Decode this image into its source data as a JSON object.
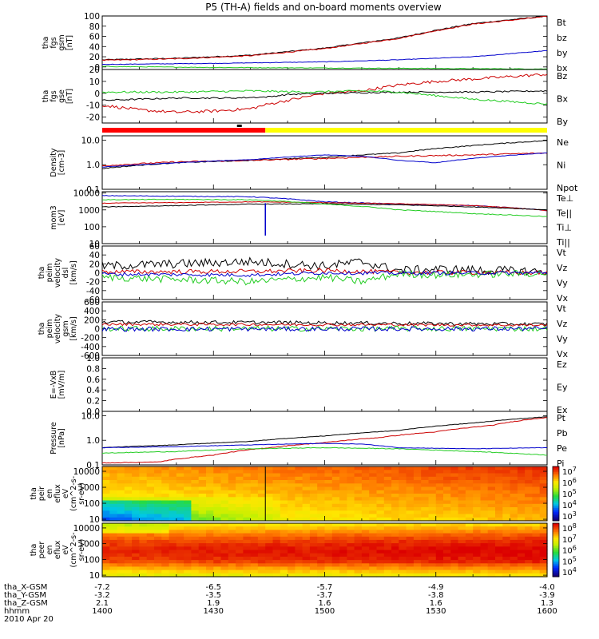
{
  "title": "P5 (TH-A) fields and on-board moments overview",
  "date": "2010 Apr 20",
  "time_axis": {
    "label": "hhmm",
    "ticks": [
      "1400",
      "1430",
      "1500",
      "1530",
      "1600"
    ],
    "range_minutes": [
      0,
      120
    ]
  },
  "ephemeris": [
    {
      "label": "tha_X-GSM",
      "values": [
        "-7.2",
        "-6.5",
        "-5.7",
        "-4.9",
        "-4.0"
      ]
    },
    {
      "label": "tha_Y-GSM",
      "values": [
        "-3.2",
        "-3.5",
        "-3.7",
        "-3.8",
        "-3.9"
      ]
    },
    {
      "label": "tha_Z-GSM",
      "values": [
        "2.1",
        "1.9",
        "1.6",
        "1.6",
        "1.3"
      ]
    }
  ],
  "colors": {
    "black": "#000000",
    "red": "#cc0000",
    "green": "#22cc22",
    "blue": "#0000cc",
    "yellow": "#ffff00"
  },
  "mode_bar": {
    "segments": [
      {
        "from": 0,
        "to": 44,
        "color": "#ff0000"
      },
      {
        "from": 44,
        "to": 120,
        "color": "#ffff00"
      }
    ],
    "marker_at": 37
  },
  "panels": [
    {
      "id": "fgs-gsm",
      "ylabel": [
        "tha",
        "fgs",
        "gsm",
        "[nT]"
      ],
      "scale": "linear",
      "ylim": [
        -5,
        100
      ],
      "ticks": [
        "100",
        "80",
        "60",
        "40",
        "20",
        "0"
      ],
      "tick_values": [
        100,
        80,
        60,
        40,
        20,
        0
      ],
      "legend": [
        {
          "t": "Bt",
          "c": "#000000"
        },
        {
          "t": "bz",
          "c": "#cc0000"
        },
        {
          "t": "by",
          "c": "#22cc22"
        },
        {
          "t": "bx",
          "c": "#0000cc"
        }
      ]
    },
    {
      "id": "fgs-gse",
      "ylabel": [
        "tha",
        "fgs",
        "gse",
        "[nT]"
      ],
      "scale": "linear",
      "ylim": [
        -25,
        20
      ],
      "ticks": [
        "20",
        "10",
        "0",
        "-10",
        "-20"
      ],
      "tick_values": [
        20,
        10,
        0,
        -10,
        -20
      ],
      "legend": [
        {
          "t": "Bz",
          "c": "#cc0000"
        },
        {
          "t": "Bx",
          "c": "#000000"
        },
        {
          "t": "By",
          "c": "#22cc22"
        }
      ]
    },
    {
      "id": "density",
      "ylabel": [
        "Density",
        "[cm-3]"
      ],
      "scale": "log",
      "ylim": [
        0.1,
        15
      ],
      "ticks": [
        "10.0",
        "1.0",
        "0.1"
      ],
      "tick_values": [
        10,
        1,
        0.1
      ],
      "legend": [
        {
          "t": "Ne",
          "c": "#cc0000"
        },
        {
          "t": "Ni",
          "c": "#000000"
        },
        {
          "t": "Npot",
          "c": "#0000cc"
        }
      ]
    },
    {
      "id": "temperature",
      "ylabel": [
        "mom3",
        "[eV]"
      ],
      "scale": "log",
      "ylim": [
        10,
        12000
      ],
      "ticks": [
        "10000",
        "1000",
        "100",
        "10"
      ],
      "tick_values": [
        10000,
        1000,
        100,
        10
      ],
      "legend": [
        {
          "t": "Te⊥",
          "c": "#cc0000"
        },
        {
          "t": "Te||",
          "c": "#000000"
        },
        {
          "t": "Ti⊥",
          "c": "#0000cc"
        },
        {
          "t": "Ti||",
          "c": "#22cc22"
        }
      ]
    },
    {
      "id": "peim-vel-dsl",
      "ylabel": [
        "tha",
        "peim",
        "velocity",
        "dsl",
        "[km/s]"
      ],
      "scale": "linear",
      "ylim": [
        -60,
        60
      ],
      "ticks": [
        "60",
        "40",
        "20",
        "0",
        "-20",
        "-40",
        "-60"
      ],
      "tick_values": [
        60,
        40,
        20,
        0,
        -20,
        -40,
        -60
      ],
      "legend": [
        {
          "t": "Vt",
          "c": "#000000"
        },
        {
          "t": "Vz",
          "c": "#cc0000"
        },
        {
          "t": "Vy",
          "c": "#22cc22"
        },
        {
          "t": "Vx",
          "c": "#0000cc"
        }
      ]
    },
    {
      "id": "peim-vel-gsm",
      "ylabel": [
        "tha",
        "peim",
        "velocity",
        "gsm",
        "[km/s]"
      ],
      "scale": "linear",
      "ylim": [
        -600,
        600
      ],
      "ticks": [
        "600",
        "400",
        "200",
        "0",
        "-200",
        "-400",
        "-600"
      ],
      "tick_values": [
        600,
        400,
        200,
        0,
        -200,
        -400,
        -600
      ],
      "legend": [
        {
          "t": "Vt",
          "c": "#000000"
        },
        {
          "t": "Vz",
          "c": "#cc0000"
        },
        {
          "t": "Vy",
          "c": "#22cc22"
        },
        {
          "t": "Vx",
          "c": "#0000cc"
        }
      ]
    },
    {
      "id": "efield",
      "ylabel": [
        "E=-VxB",
        "[mV/m]"
      ],
      "scale": "linear",
      "ylim": [
        0,
        1
      ],
      "ticks": [
        "1.0",
        "0.8",
        "0.6",
        "0.4",
        "0.2",
        "0.0"
      ],
      "tick_values": [
        1,
        0.8,
        0.6,
        0.4,
        0.2,
        0
      ],
      "legend": [
        {
          "t": "Ez",
          "c": "#cc0000"
        },
        {
          "t": "Ey",
          "c": "#22cc22"
        },
        {
          "t": "Ex",
          "c": "#0000cc"
        }
      ]
    },
    {
      "id": "pressure",
      "ylabel": [
        "Pressure",
        "[nPa]"
      ],
      "scale": "log",
      "ylim": [
        0.1,
        15
      ],
      "ticks": [
        "10.0",
        "1.0",
        "0.1"
      ],
      "tick_values": [
        10,
        1,
        0.1
      ],
      "legend": [
        {
          "t": "Pt",
          "c": "#000000"
        },
        {
          "t": "Pb",
          "c": "#cc0000"
        },
        {
          "t": "Pe",
          "c": "#22cc22"
        },
        {
          "t": "Pi",
          "c": "#0000cc"
        }
      ]
    },
    {
      "id": "peir-spec",
      "ylabel": [
        "tha",
        "peir",
        "en",
        "eflux",
        "eV",
        "(cm^2-s-",
        "sr-eV)"
      ],
      "scale": "log",
      "ylim": [
        8,
        20000
      ],
      "ticks": [
        "10000",
        "1000",
        "100",
        "10"
      ],
      "tick_values": [
        10000,
        1000,
        100,
        10
      ],
      "colorbar": [
        "10^7",
        "10^6",
        "10^5",
        "10^4",
        "10^3"
      ]
    },
    {
      "id": "peer-spec",
      "ylabel": [
        "tha",
        "peer",
        "en",
        "eflux",
        "eV",
        "(cm^2-s-",
        "sr-eV)"
      ],
      "scale": "log",
      "ylim": [
        8,
        20000
      ],
      "ticks": [
        "10000",
        "1000",
        "100",
        "10"
      ],
      "tick_values": [
        10000,
        1000,
        100,
        10
      ],
      "colorbar": [
        "10^8",
        "10^7",
        "10^6",
        "10^5",
        "10^4"
      ]
    }
  ],
  "chart_data": {
    "type": "line",
    "title": "P5 (TH-A) fields and on-board moments overview",
    "x_unit_label": "hhmm",
    "x_range": [
      0,
      120
    ],
    "series": [
      {
        "panel": "fgs-gsm",
        "name": "Bt",
        "color": "#000000",
        "x": [
          0,
          20,
          40,
          60,
          70,
          80,
          90,
          100,
          120
        ],
        "y": [
          14,
          17,
          23,
          37,
          47,
          57,
          72,
          85,
          100
        ],
        "noise": 1
      },
      {
        "panel": "fgs-gsm",
        "name": "bz",
        "color": "#cc0000",
        "x": [
          0,
          20,
          40,
          60,
          70,
          80,
          90,
          100,
          120
        ],
        "y": [
          13,
          16,
          22,
          36,
          46,
          56,
          71,
          84,
          99
        ],
        "noise": 1
      },
      {
        "panel": "fgs-gsm",
        "name": "bx",
        "color": "#0000cc",
        "x": [
          0,
          30,
          60,
          80,
          100,
          120
        ],
        "y": [
          5,
          7,
          10,
          14,
          20,
          32
        ],
        "noise": 0.5
      },
      {
        "panel": "fgs-gsm",
        "name": "by",
        "color": "#22cc22",
        "x": [
          0,
          30,
          60,
          90,
          120
        ],
        "y": [
          1,
          -1,
          -2,
          -3,
          -4
        ],
        "noise": 0.6
      },
      {
        "panel": "fgs-gse",
        "name": "Bz",
        "color": "#cc0000",
        "x": [
          0,
          10,
          20,
          30,
          40,
          45,
          50,
          55,
          60,
          70,
          80,
          90,
          100,
          110,
          120
        ],
        "y": [
          -10,
          -14,
          -16,
          -15,
          -13,
          -9,
          -6,
          -3,
          0,
          2,
          7,
          10,
          12,
          14,
          16
        ],
        "noise": 1.2
      },
      {
        "panel": "fgs-gse",
        "name": "Bx",
        "color": "#000000",
        "x": [
          0,
          20,
          35,
          45,
          50,
          60,
          80,
          100,
          120
        ],
        "y": [
          -6,
          -4,
          -4,
          -3,
          -1,
          0,
          1,
          1,
          2
        ],
        "noise": 0.6
      },
      {
        "panel": "fgs-gse",
        "name": "By",
        "color": "#22cc22",
        "x": [
          0,
          20,
          40,
          55,
          70,
          80,
          90,
          100,
          120
        ],
        "y": [
          1,
          1,
          2,
          1,
          2,
          1,
          -2,
          -5,
          -9
        ],
        "noise": 0.8
      },
      {
        "panel": "density",
        "name": "Ni",
        "color": "#000000",
        "x": [
          0,
          20,
          40,
          60,
          80,
          100,
          120
        ],
        "y": [
          0.7,
          1.2,
          1.5,
          2.0,
          3.0,
          6.0,
          9.5
        ],
        "noise": 0.04
      },
      {
        "panel": "density",
        "name": "Ne",
        "color": "#cc0000",
        "x": [
          0,
          20,
          40,
          60,
          80,
          100,
          120
        ],
        "y": [
          0.9,
          1.3,
          1.5,
          1.8,
          2.2,
          2.5,
          3.0
        ],
        "noise": 0.06
      },
      {
        "panel": "density",
        "name": "Npot",
        "color": "#0000cc",
        "x": [
          0,
          20,
          40,
          60,
          70,
          80,
          90,
          100,
          120
        ],
        "y": [
          0.8,
          1.2,
          1.6,
          2.5,
          2.2,
          1.5,
          1.2,
          1.8,
          3.0
        ],
        "noise": 0.02
      },
      {
        "panel": "temperature",
        "name": "Ti⊥",
        "color": "#0000cc",
        "x": [
          0,
          20,
          40,
          60,
          80,
          100,
          120
        ],
        "y": [
          7000,
          6500,
          6000,
          3000,
          2200,
          1800,
          900
        ],
        "noise": 0.05
      },
      {
        "panel": "temperature",
        "name": "Te⊥",
        "color": "#cc0000",
        "x": [
          0,
          20,
          40,
          60,
          80,
          100,
          120
        ],
        "y": [
          2500,
          2700,
          3000,
          2700,
          2300,
          1800,
          900
        ],
        "noise": 0.04
      },
      {
        "panel": "temperature",
        "name": "Te||",
        "color": "#000000",
        "x": [
          0,
          20,
          40,
          60,
          80,
          100,
          120
        ],
        "y": [
          1500,
          1800,
          2200,
          2300,
          2000,
          1500,
          1000
        ],
        "noise": 0.04
      },
      {
        "panel": "temperature",
        "name": "Ti||",
        "color": "#22cc22",
        "x": [
          0,
          20,
          40,
          60,
          80,
          100,
          120
        ],
        "y": [
          4000,
          4200,
          4000,
          2200,
          1000,
          600,
          400
        ],
        "noise": 0.05
      },
      {
        "panel": "peim-vel-dsl",
        "name": "Vt",
        "color": "#000000",
        "x": [
          0,
          20,
          40,
          60,
          70,
          80,
          90,
          120
        ],
        "y": [
          15,
          20,
          25,
          15,
          25,
          5,
          8,
          3
        ],
        "noise": 10
      },
      {
        "panel": "peim-vel-dsl",
        "name": "Vz",
        "color": "#cc0000",
        "x": [
          0,
          40,
          60,
          80,
          120
        ],
        "y": [
          2,
          3,
          5,
          1,
          0
        ],
        "noise": 5
      },
      {
        "panel": "peim-vel-dsl",
        "name": "Vy",
        "color": "#22cc22",
        "x": [
          0,
          20,
          40,
          60,
          70,
          80,
          90,
          120
        ],
        "y": [
          -10,
          -15,
          -20,
          -10,
          -20,
          -2,
          -5,
          -1
        ],
        "noise": 8
      },
      {
        "panel": "peim-vel-dsl",
        "name": "Vx",
        "color": "#0000cc",
        "x": [
          0,
          40,
          60,
          80,
          120
        ],
        "y": [
          -3,
          -5,
          0,
          -1,
          0
        ],
        "noise": 4
      },
      {
        "panel": "peim-vel-gsm",
        "name": "Vt",
        "color": "#000000",
        "x": [
          0,
          40,
          80,
          120
        ],
        "y": [
          150,
          140,
          120,
          100
        ],
        "noise": 40
      },
      {
        "panel": "peim-vel-gsm",
        "name": "Vz",
        "color": "#cc0000",
        "x": [
          0,
          120
        ],
        "y": [
          100,
          80
        ],
        "noise": 30
      },
      {
        "panel": "peim-vel-gsm",
        "name": "Vy",
        "color": "#22cc22",
        "x": [
          0,
          120
        ],
        "y": [
          0,
          0
        ],
        "noise": 60
      },
      {
        "panel": "peim-vel-gsm",
        "name": "Vx",
        "color": "#0000cc",
        "x": [
          0,
          120
        ],
        "y": [
          -10,
          0
        ],
        "noise": 50
      },
      {
        "panel": "pressure",
        "name": "Pt",
        "color": "#000000",
        "x": [
          0,
          20,
          40,
          60,
          80,
          100,
          120
        ],
        "y": [
          0.5,
          0.65,
          0.9,
          1.5,
          2.5,
          5,
          9
        ],
        "noise": 0.02
      },
      {
        "panel": "pressure",
        "name": "Pb",
        "color": "#cc0000",
        "x": [
          0,
          15,
          30,
          45,
          60,
          75,
          90,
          105,
          120
        ],
        "y": [
          0.12,
          0.13,
          0.25,
          0.5,
          0.8,
          1.3,
          2.2,
          4,
          8.5
        ],
        "noise": 0.03
      },
      {
        "panel": "pressure",
        "name": "Pe",
        "color": "#22cc22",
        "x": [
          0,
          20,
          40,
          60,
          80,
          100,
          120
        ],
        "y": [
          0.3,
          0.35,
          0.45,
          0.5,
          0.45,
          0.35,
          0.25
        ],
        "noise": 0.03
      },
      {
        "panel": "pressure",
        "name": "Pi",
        "color": "#0000cc",
        "x": [
          0,
          20,
          40,
          60,
          70,
          80,
          100,
          120
        ],
        "y": [
          0.5,
          0.55,
          0.65,
          0.75,
          0.7,
          0.5,
          0.45,
          0.5
        ],
        "noise": 0.02
      }
    ],
    "spectrograms": [
      {
        "panel": "peir-spec",
        "energy_range": [
          8,
          20000
        ],
        "colorbar_range": [
          "10^3",
          "10^7"
        ]
      },
      {
        "panel": "peer-spec",
        "energy_range": [
          8,
          20000
        ],
        "colorbar_range": [
          "10^4",
          "10^8"
        ]
      }
    ]
  }
}
